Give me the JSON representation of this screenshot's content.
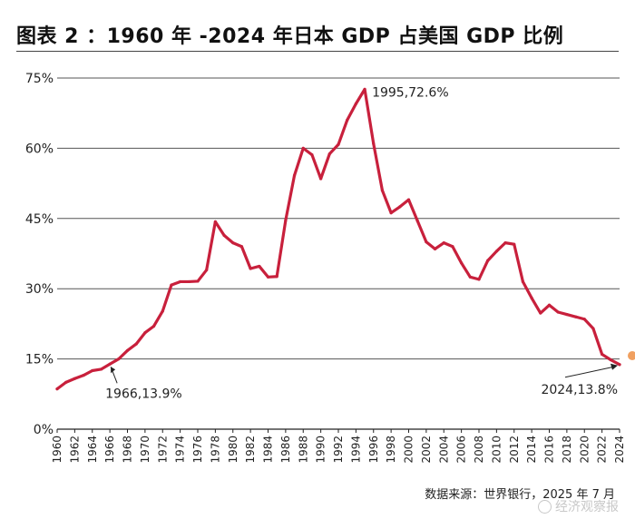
{
  "chart_data": {
    "type": "line",
    "title": "图表 2 ：1960 年 -2024 年日本 GDP 占美国 GDP 比例",
    "xlabel": "",
    "ylabel": "",
    "ylim": [
      0,
      75
    ],
    "yticks": [
      0,
      15,
      30,
      45,
      60,
      75
    ],
    "ytick_labels": [
      "0%",
      "15%",
      "30%",
      "45%",
      "60%",
      "75%"
    ],
    "xlim": [
      1960,
      2024
    ],
    "xtick_labels": [
      "1960",
      "1962",
      "1964",
      "1966",
      "1968",
      "1970",
      "1972",
      "1974",
      "1976",
      "1978",
      "1980",
      "1982",
      "1984",
      "1986",
      "1988",
      "1990",
      "1992",
      "1994",
      "1996",
      "1998",
      "2000",
      "2002",
      "2004",
      "2006",
      "2008",
      "2010",
      "2012",
      "2014",
      "2016",
      "2018",
      "2020",
      "2022",
      "2024"
    ],
    "series": [
      {
        "name": "日本GDP占美国GDP比例",
        "color": "#c8203c",
        "x": [
          1960,
          1961,
          1962,
          1963,
          1964,
          1965,
          1966,
          1967,
          1968,
          1969,
          1970,
          1971,
          1972,
          1973,
          1974,
          1975,
          1976,
          1977,
          1978,
          1979,
          1980,
          1981,
          1982,
          1983,
          1984,
          1985,
          1986,
          1987,
          1988,
          1989,
          1990,
          1991,
          1992,
          1993,
          1994,
          1995,
          1996,
          1997,
          1998,
          1999,
          2000,
          2001,
          2002,
          2003,
          2004,
          2005,
          2006,
          2007,
          2008,
          2009,
          2010,
          2011,
          2012,
          2013,
          2014,
          2015,
          2016,
          2017,
          2018,
          2019,
          2020,
          2021,
          2022,
          2023,
          2024
        ],
        "values": [
          8.6,
          10.0,
          10.8,
          11.5,
          12.5,
          12.8,
          13.9,
          15.0,
          16.8,
          18.2,
          20.6,
          22.0,
          25.2,
          30.8,
          31.5,
          31.5,
          31.6,
          34.0,
          44.3,
          41.4,
          39.8,
          39.0,
          34.3,
          34.8,
          32.5,
          32.6,
          44.6,
          54.2,
          60.0,
          58.6,
          53.5,
          58.8,
          60.8,
          66.0,
          69.5,
          72.6,
          61.0,
          51.0,
          46.2,
          47.5,
          49.0,
          44.5,
          40.0,
          38.5,
          39.8,
          39.0,
          35.5,
          32.5,
          32.0,
          36.0,
          38.0,
          39.8,
          39.5,
          31.5,
          28.0,
          24.8,
          26.5,
          25.0,
          24.5,
          24.0,
          23.5,
          21.5,
          16.0,
          14.8,
          13.8
        ]
      }
    ],
    "annotations": [
      {
        "text": "1995,72.6%",
        "x": 1995,
        "y": 72.6
      },
      {
        "text": "1966,13.9%",
        "x": 1966,
        "y": 13.9
      },
      {
        "text": "2024,13.8%",
        "x": 2024,
        "y": 13.8
      }
    ]
  },
  "source_note": "数据来源：世界银行，2025 年 7 月",
  "watermark": "经济观察报"
}
